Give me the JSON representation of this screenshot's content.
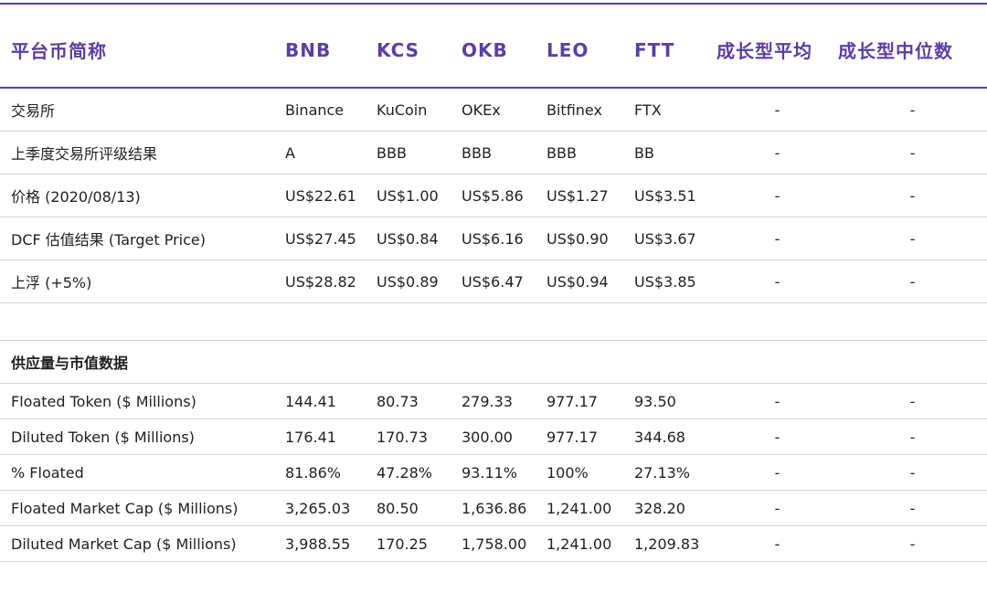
{
  "colors": {
    "accent": "#5b3fa0",
    "border": "#d2d2d2",
    "text": "#1f1f1f"
  },
  "header": {
    "label": "平台币简称",
    "tokens": [
      "BNB",
      "KCS",
      "OKB",
      "LEO",
      "FTT"
    ],
    "growth_avg": "成长型平均",
    "growth_median": "成长型中位数"
  },
  "top_rows": [
    {
      "label": "交易所",
      "values": [
        "Binance",
        "KuCoin",
        "OKEx",
        "Bitfinex",
        "FTX"
      ],
      "avg": "-",
      "median": "-"
    },
    {
      "label": "上季度交易所评级结果",
      "values": [
        "A",
        "BBB",
        "BBB",
        "BBB",
        "BB"
      ],
      "avg": "-",
      "median": "-"
    },
    {
      "label": "价格 (2020/08/13)",
      "values": [
        "US$22.61",
        "US$1.00",
        "US$5.86",
        "US$1.27",
        "US$3.51"
      ],
      "avg": "-",
      "median": "-"
    },
    {
      "label": "DCF 估值结果 (Target Price)",
      "values": [
        "US$27.45",
        "US$0.84",
        "US$6.16",
        "US$0.90",
        "US$3.67"
      ],
      "avg": "-",
      "median": "-"
    },
    {
      "label": "上浮 (+5%)",
      "values": [
        "US$28.82",
        "US$0.89",
        "US$6.47",
        "US$0.94",
        "US$3.85"
      ],
      "avg": "-",
      "median": "-"
    }
  ],
  "section_title": "供应量与市值数据",
  "supply_rows": [
    {
      "label": "Floated Token ($ Millions)",
      "values": [
        "144.41",
        "80.73",
        "279.33",
        "977.17",
        "93.50"
      ],
      "avg": "-",
      "median": "-"
    },
    {
      "label": "Diluted Token ($ Millions)",
      "values": [
        "176.41",
        "170.73",
        "300.00",
        "977.17",
        "344.68"
      ],
      "avg": "-",
      "median": "-"
    },
    {
      "label": "% Floated",
      "values": [
        "81.86%",
        "47.28%",
        "93.11%",
        "100%",
        "27.13%"
      ],
      "avg": "-",
      "median": "-"
    },
    {
      "label": "Floated Market Cap ($ Millions)",
      "values": [
        "3,265.03",
        "80.50",
        "1,636.86",
        "1,241.00",
        "328.20"
      ],
      "avg": "-",
      "median": "-"
    },
    {
      "label": "Diluted Market Cap ($ Millions)",
      "values": [
        "3,988.55",
        "170.25",
        "1,758.00",
        "1,241.00",
        "1,209.83"
      ],
      "avg": "-",
      "median": "-"
    }
  ]
}
